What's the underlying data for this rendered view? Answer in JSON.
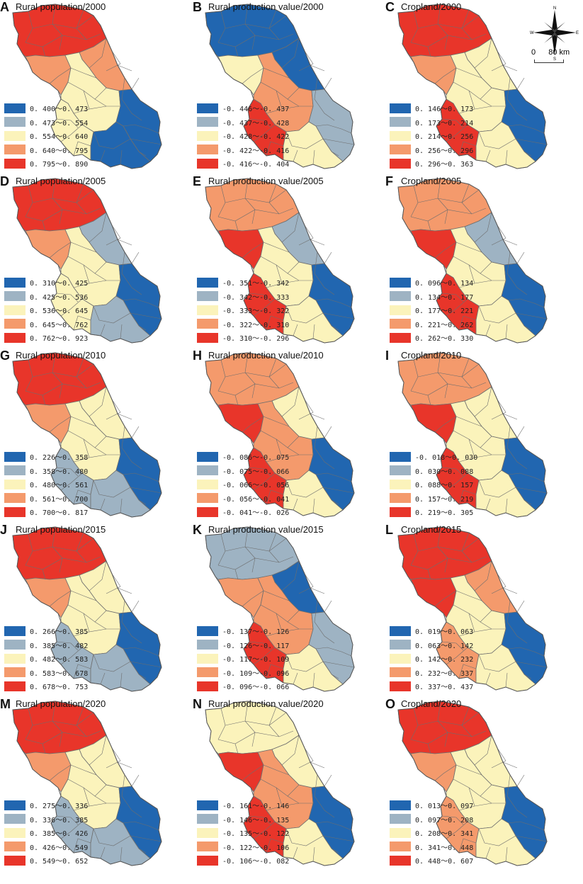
{
  "colors": [
    "#2166b0",
    "#9eb3c3",
    "#fbf3bb",
    "#f49a6c",
    "#e8352a"
  ],
  "compass": {
    "north": "N",
    "south": "S",
    "east": "E",
    "west": "W",
    "scale_left": "0",
    "scale_right": "80 km"
  },
  "panels": [
    {
      "letter": "A",
      "title": "Rural population/2000",
      "variable": "rural_population",
      "legend": [
        "0. 400～0. 473",
        "0. 473～0. 554",
        "0. 554～0. 640",
        "0. 640～0. 795",
        "0. 795～0. 890"
      ]
    },
    {
      "letter": "B",
      "title": "Rural production value/2000",
      "variable": "rural_production_value",
      "legend": [
        "-0. 446～-0. 437",
        "-0. 437～-0. 428",
        "-0. 428～-0. 422",
        "-0. 422～-0. 416",
        "-0. 416～-0. 404"
      ]
    },
    {
      "letter": "C",
      "title": "Cropland/2000",
      "variable": "cropland",
      "legend": [
        "0. 146～0. 173",
        "0. 173～0. 214",
        "0. 214～0. 256",
        "0. 256～0. 296",
        "0. 296～0. 363"
      ]
    },
    {
      "letter": "D",
      "title": "Rural population/2005",
      "variable": "rural_population",
      "legend": [
        "0. 310～0. 425",
        "0. 425～0. 536",
        "0. 536～0. 645",
        "0. 645～0. 762",
        "0. 762～0. 923"
      ]
    },
    {
      "letter": "E",
      "title": "Rural production value/2005",
      "variable": "rural_production_value",
      "legend": [
        "-0. 351～-0. 342",
        "-0. 342～-0. 333",
        "-0. 333～-0. 322",
        "-0. 322～-0. 310",
        "-0. 310～-0. 296"
      ]
    },
    {
      "letter": "F",
      "title": "Cropland/2005",
      "variable": "cropland",
      "legend": [
        "0. 096～0. 134",
        "0. 134～0. 177",
        "0. 177～0. 221",
        "0. 221～0. 262",
        "0. 262～0. 330"
      ]
    },
    {
      "letter": "G",
      "title": "Rural population/2010",
      "variable": "rural_population",
      "legend": [
        "0. 226～0. 358",
        "0. 358～0. 480",
        "0. 480～0. 561",
        "0. 561～0. 700",
        "0. 700～0. 817"
      ]
    },
    {
      "letter": "H",
      "title": "Rural production value/2010",
      "variable": "rural_production_value",
      "legend": [
        "-0. 086～-0. 075",
        "-0. 075～-0. 066",
        "-0. 066～-0. 056",
        "-0. 056～-0. 041",
        "-0. 041～-0. 026"
      ]
    },
    {
      "letter": "I",
      "title": "Cropland/2010",
      "variable": "cropland",
      "legend": [
        "-0. 018～0. 030",
        "0. 030～0. 088",
        "0. 088～0. 157",
        "0. 157～0. 219",
        "0. 219～0. 305"
      ]
    },
    {
      "letter": "J",
      "title": "Rural population/2015",
      "variable": "rural_population",
      "legend": [
        "0. 266～0. 385",
        "0. 385～0. 482",
        "0. 482～0. 583",
        "0. 583～0. 678",
        "0. 678～0. 753"
      ]
    },
    {
      "letter": "K",
      "title": "Rural production value/2015",
      "variable": "rural_production_value",
      "legend": [
        "-0. 137～-0. 126",
        "-0. 126～-0. 117",
        "-0. 117～-0. 109",
        "-0. 109～-0. 096",
        "-0. 096～-0. 066"
      ]
    },
    {
      "letter": "L",
      "title": "Cropland/2015",
      "variable": "cropland",
      "legend": [
        "0. 019～0. 063",
        "0. 063～0. 142",
        "0. 142～0. 232",
        "0. 232～0. 337",
        "0. 337～0. 437"
      ]
    },
    {
      "letter": "M",
      "title": "Rural population/2020",
      "variable": "rural_population",
      "legend": [
        "0. 275～0. 336",
        "0. 336～0. 385",
        "0. 385～0. 426",
        "0. 426～0. 549",
        "0. 549～0. 652"
      ]
    },
    {
      "letter": "N",
      "title": "Rural production value/2020",
      "variable": "rural_production_value",
      "legend": [
        "-0. 161～-0. 146",
        "-0. 146～-0. 135",
        "-0. 135～-0. 122",
        "-0. 122～-0. 106",
        "-0. 106～-0. 082"
      ]
    },
    {
      "letter": "O",
      "title": "Cropland/2020",
      "variable": "cropland",
      "legend": [
        "0. 013～0. 097",
        "0. 097～0. 208",
        "0. 208～0. 341",
        "0. 341～0. 448",
        "0. 448～0. 607"
      ]
    }
  ]
}
